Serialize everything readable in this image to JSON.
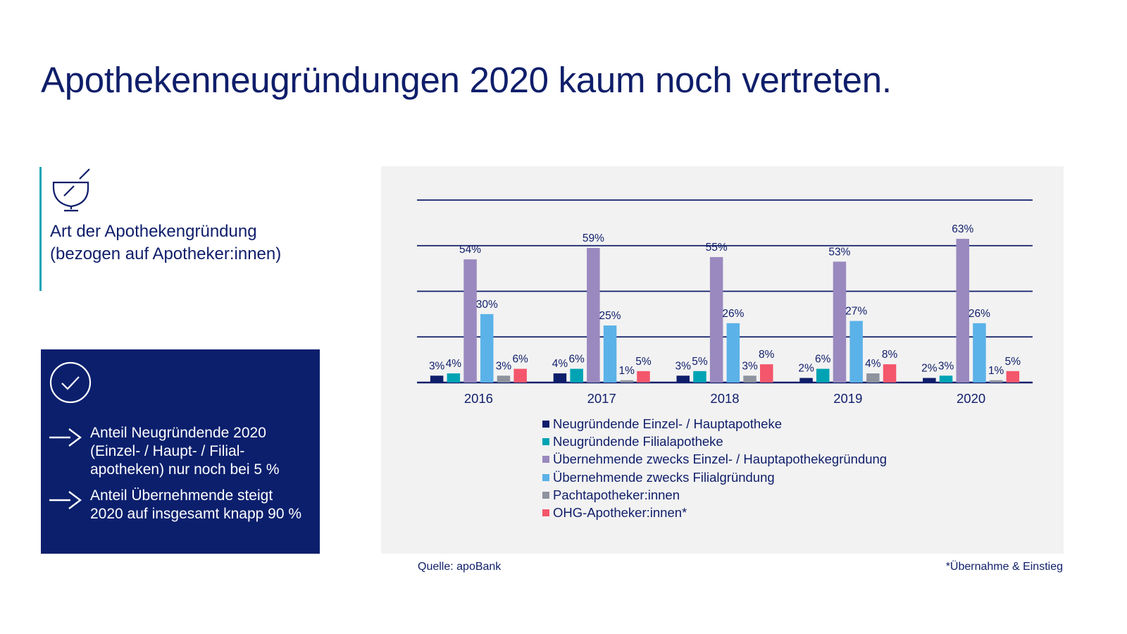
{
  "header": {
    "title": "Apothekenneugründungen 2020 kaum noch vertreten."
  },
  "info": {
    "icon": "mortar-pestle-icon",
    "line1": "Art der Apothekengründung",
    "line2": "(bezogen auf Apotheker:innen)",
    "accent_color": "#1aa3b8"
  },
  "summary": {
    "icon": "check-circle-icon",
    "bullets": [
      {
        "icon": "arrow-right-icon",
        "lines": [
          "Anteil Neugründende 2020",
          "(Einzel- / Haupt- / Filial-",
          "apotheken) nur noch bei 5 %"
        ]
      },
      {
        "icon": "arrow-right-icon",
        "lines": [
          "Anteil Übernehmende steigt",
          "2020 auf insgesamt knapp 90 %"
        ]
      }
    ],
    "background_color": "#0b1f6d"
  },
  "chart_data": {
    "type": "bar",
    "title": "",
    "xlabel": "",
    "ylabel": "",
    "ylim": [
      0,
      80
    ],
    "grid": true,
    "gridlines": [
      0,
      20,
      40,
      60,
      80
    ],
    "categories": [
      "2016",
      "2017",
      "2018",
      "2019",
      "2020"
    ],
    "legend_position": "bottom",
    "series": [
      {
        "name": "Neugründende Einzel- / Hauptapotheke",
        "color": "#0f1e6a",
        "values": [
          3,
          4,
          3,
          2,
          2
        ],
        "labels": [
          "3%",
          "4%",
          "3%",
          "2%",
          "2%"
        ]
      },
      {
        "name": "Neugründende Filialapotheke",
        "color": "#00a3b4",
        "values": [
          4,
          6,
          5,
          6,
          3
        ],
        "labels": [
          "4%",
          "6%",
          "5%",
          "6%",
          "3%"
        ]
      },
      {
        "name": "Übernehmende zwecks Einzel- / Hauptapothekegründung",
        "color": "#9a89bf",
        "values": [
          54,
          59,
          55,
          53,
          63
        ],
        "labels": [
          "54%",
          "59%",
          "55%",
          "53%",
          "63%"
        ]
      },
      {
        "name": "Übernehmende zwecks Filialgründung",
        "color": "#5bb2e8",
        "values": [
          30,
          25,
          26,
          27,
          26
        ],
        "labels": [
          "30%",
          "25%",
          "26%",
          "27%",
          "26%"
        ]
      },
      {
        "name": "Pachtapotheker:innen",
        "color": "#8e939e",
        "values": [
          3,
          1,
          3,
          4,
          1
        ],
        "labels": [
          "3%",
          "1%",
          "3%",
          "4%",
          "1%"
        ]
      },
      {
        "name": "OHG-Apotheker:innen*",
        "color": "#f4566b",
        "values": [
          6,
          5,
          8,
          8,
          5
        ],
        "labels": [
          "6%",
          "5%",
          "8%",
          "8%",
          "5%"
        ]
      }
    ]
  },
  "footer": {
    "source": "Quelle: apoBank",
    "footnote": "*Übernahme & Einstieg"
  }
}
